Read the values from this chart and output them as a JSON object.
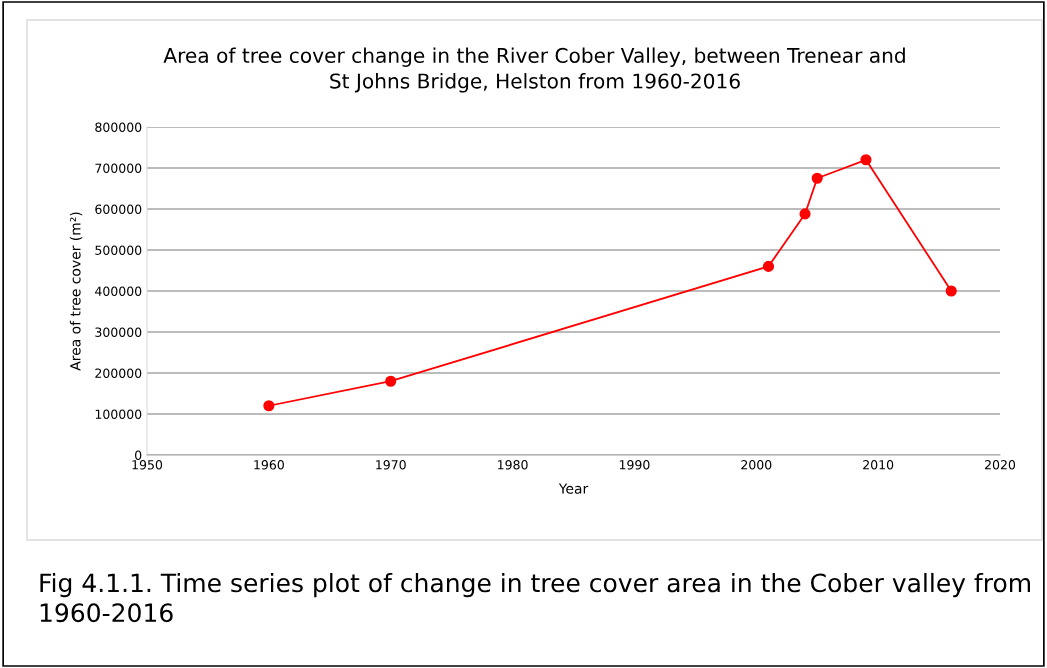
{
  "chart_data": {
    "type": "line",
    "title": "Area of tree cover change in the River Cober Valley, between Trenear and\nSt Johns Bridge, Helston from 1960-2016",
    "xlabel": "Year",
    "ylabel": "Area of tree cover (m²)",
    "x": [
      1960,
      1970,
      2001,
      2004,
      2005,
      2009,
      2016
    ],
    "series": [
      {
        "color": "#ff0000",
        "values": [
          120000,
          180000,
          460000,
          588000,
          675000,
          720000,
          400000
        ]
      }
    ],
    "xlim": [
      1950,
      2020
    ],
    "xticks": [
      1950,
      1960,
      1970,
      1980,
      1990,
      2000,
      2010,
      2020
    ],
    "ylim": [
      0,
      800000
    ],
    "yticks": [
      0,
      100000,
      200000,
      300000,
      400000,
      500000,
      600000,
      700000,
      800000
    ],
    "grid": "y",
    "marker": "circle",
    "line_style": "solid",
    "legend": false,
    "annotations": [
      "Fig 4.1.1. Time series plot of change in tree cover area in the Cober valley from 1960-2016"
    ]
  }
}
